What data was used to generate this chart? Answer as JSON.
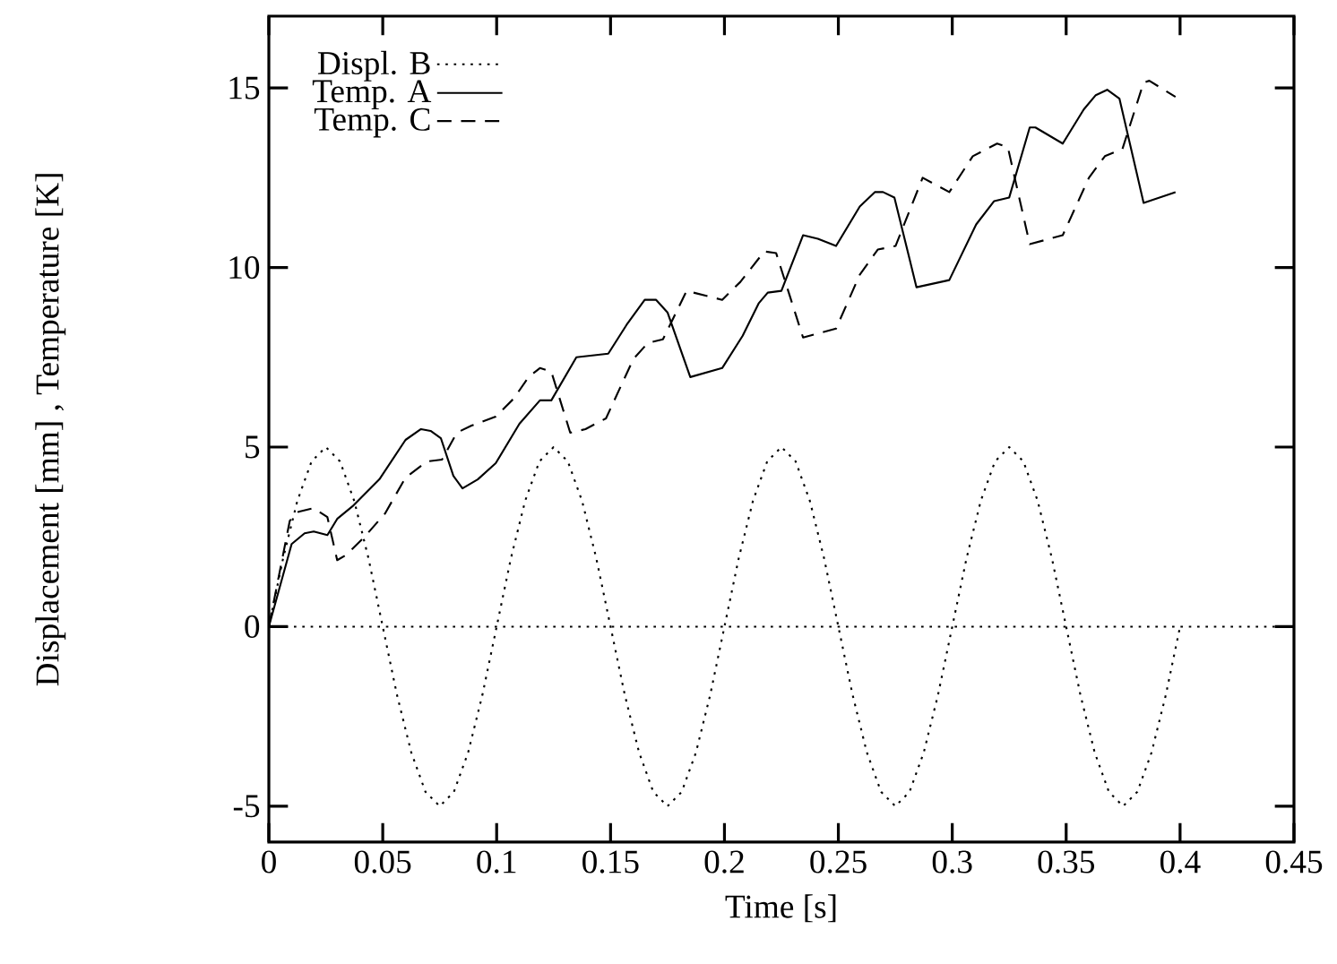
{
  "chart_data": {
    "type": "line",
    "xlabel": "Time [s]",
    "ylabel": "Displacement [mm] , Temperature [K]",
    "xlim": [
      0,
      0.45
    ],
    "ylim": [
      -6,
      17
    ],
    "xticks": [
      0,
      0.05,
      0.1,
      0.15,
      0.2,
      0.25,
      0.3,
      0.35,
      0.4,
      0.45
    ],
    "yticks": [
      -5,
      0,
      5,
      10,
      15
    ],
    "legend": "top left",
    "ref_lines": [
      {
        "axis": "y",
        "value": 0,
        "color": "#000000",
        "line_style": "dotted"
      }
    ],
    "series": [
      {
        "name": "Displ. B",
        "color": "#000000",
        "line_style": "dotted",
        "x": [
          0,
          0.00625,
          0.0125,
          0.01875,
          0.025,
          0.03125,
          0.0375,
          0.04375,
          0.05,
          0.05625,
          0.0625,
          0.06875,
          0.075,
          0.08125,
          0.0875,
          0.09375,
          0.1,
          0.10625,
          0.1125,
          0.11875,
          0.125,
          0.13125,
          0.1375,
          0.14375,
          0.15,
          0.15625,
          0.1625,
          0.16875,
          0.175,
          0.18125,
          0.1875,
          0.19375,
          0.2,
          0.20625,
          0.2125,
          0.21875,
          0.225,
          0.23125,
          0.2375,
          0.24375,
          0.25,
          0.25625,
          0.2625,
          0.26875,
          0.275,
          0.28125,
          0.2875,
          0.29375,
          0.3,
          0.30625,
          0.3125,
          0.31875,
          0.325,
          0.33125,
          0.3375,
          0.34375,
          0.35,
          0.35625,
          0.3625,
          0.36875,
          0.375,
          0.38125,
          0.3875,
          0.39375,
          0.4
        ],
        "values": [
          0,
          1.9,
          3.5,
          4.6,
          5,
          4.6,
          3.5,
          1.9,
          0,
          -1.9,
          -3.5,
          -4.6,
          -5,
          -4.6,
          -3.5,
          -1.9,
          0,
          1.9,
          3.5,
          4.6,
          5,
          4.6,
          3.5,
          1.9,
          0,
          -1.9,
          -3.5,
          -4.6,
          -5,
          -4.6,
          -3.5,
          -1.9,
          0,
          1.9,
          3.5,
          4.6,
          5,
          4.6,
          3.5,
          1.9,
          0,
          -1.9,
          -3.5,
          -4.6,
          -5,
          -4.6,
          -3.5,
          -1.9,
          0,
          1.9,
          3.5,
          4.6,
          5,
          4.6,
          3.5,
          1.9,
          0,
          -1.9,
          -3.5,
          -4.6,
          -5,
          -4.6,
          -3.5,
          -1.9,
          0
        ]
      },
      {
        "name": "Temp. A",
        "color": "#000000",
        "line_style": "solid",
        "x": [
          0,
          0.01,
          0.0157,
          0.0197,
          0.0257,
          0.03,
          0.0367,
          0.0485,
          0.06,
          0.0668,
          0.071,
          0.0755,
          0.081,
          0.085,
          0.0917,
          0.0996,
          0.11,
          0.119,
          0.124,
          0.135,
          0.149,
          0.157,
          0.165,
          0.17,
          0.175,
          0.185,
          0.199,
          0.208,
          0.215,
          0.219,
          0.225,
          0.2345,
          0.241,
          0.249,
          0.2594,
          0.266,
          0.2696,
          0.2746,
          0.2843,
          0.2987,
          0.3105,
          0.3184,
          0.325,
          0.334,
          0.3365,
          0.3485,
          0.3577,
          0.363,
          0.368,
          0.3734,
          0.384,
          0.398
        ],
        "values": [
          0,
          2.3,
          2.6,
          2.65,
          2.55,
          3.0,
          3.35,
          4.1,
          5.2,
          5.5,
          5.45,
          5.25,
          4.2,
          3.85,
          4.1,
          4.55,
          5.65,
          6.3,
          6.3,
          7.5,
          7.6,
          8.4,
          9.1,
          9.1,
          8.75,
          6.95,
          7.2,
          8.1,
          9.0,
          9.3,
          9.35,
          10.9,
          10.8,
          10.6,
          11.7,
          12.1,
          12.1,
          11.95,
          9.45,
          9.65,
          11.2,
          11.85,
          11.95,
          13.9,
          13.9,
          13.45,
          14.4,
          14.8,
          14.95,
          14.7,
          11.8,
          12.1
        ]
      },
      {
        "name": "Temp. C",
        "color": "#000000",
        "line_style": "dashed",
        "x": [
          0,
          0.0092,
          0.013,
          0.0197,
          0.0257,
          0.03,
          0.034,
          0.042,
          0.051,
          0.06,
          0.0694,
          0.076,
          0.0825,
          0.089,
          0.0996,
          0.1075,
          0.114,
          0.119,
          0.124,
          0.1323,
          0.139,
          0.148,
          0.16,
          0.1664,
          0.173,
          0.1834,
          0.199,
          0.207,
          0.2175,
          0.2227,
          0.2345,
          0.249,
          0.2594,
          0.2673,
          0.2751,
          0.287,
          0.2987,
          0.309,
          0.3197,
          0.3244,
          0.334,
          0.3485,
          0.36,
          0.367,
          0.3747,
          0.384,
          0.3865,
          0.398
        ],
        "values": [
          0,
          2.95,
          3.2,
          3.3,
          3.05,
          1.85,
          2.0,
          2.5,
          3.15,
          4.15,
          4.6,
          4.65,
          5.4,
          5.6,
          5.85,
          6.35,
          6.95,
          7.2,
          7.1,
          5.4,
          5.5,
          5.8,
          7.45,
          7.9,
          8.0,
          9.35,
          9.1,
          9.6,
          10.45,
          10.4,
          8.05,
          8.3,
          9.8,
          10.5,
          10.6,
          12.5,
          12.1,
          13.1,
          13.45,
          13.35,
          10.65,
          10.9,
          12.5,
          13.1,
          13.3,
          15.15,
          15.2,
          14.75
        ]
      }
    ]
  }
}
